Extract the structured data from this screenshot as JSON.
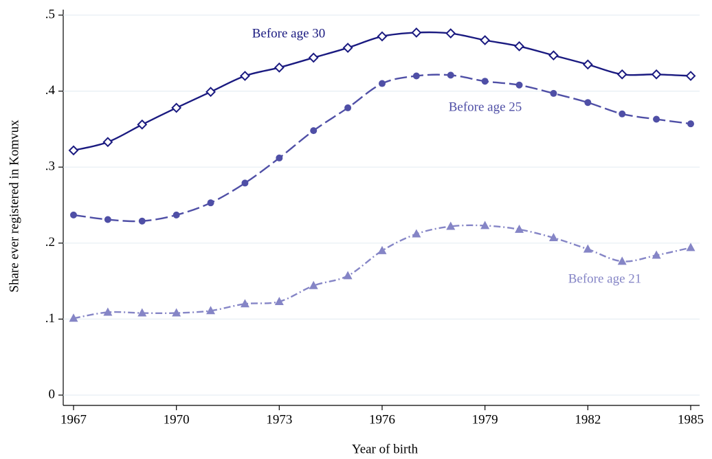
{
  "chart_data": {
    "type": "line",
    "x_label": "Year of birth",
    "y_label": "Share ever registered in Komvux",
    "x": [
      1967,
      1968,
      1969,
      1970,
      1971,
      1972,
      1973,
      1974,
      1975,
      1976,
      1977,
      1978,
      1979,
      1980,
      1981,
      1982,
      1983,
      1984,
      1985
    ],
    "xlim": [
      1967,
      1985
    ],
    "xticks": [
      1967,
      1970,
      1973,
      1976,
      1979,
      1982,
      1985
    ],
    "ylim": [
      0,
      0.5
    ],
    "yticks": [
      0,
      {
        "value": 0.1,
        "label": ".1"
      },
      {
        "value": 0.2,
        "label": ".2"
      },
      {
        "value": 0.3,
        "label": ".3"
      },
      {
        "value": 0.4,
        "label": ".4"
      },
      {
        "value": 0.5,
        "label": ".5"
      }
    ],
    "grid": true,
    "series": [
      {
        "name": "Before age 30",
        "color": "#1a1a80",
        "marker": "diamond",
        "dash": "solid",
        "values": [
          0.322,
          0.333,
          0.356,
          0.378,
          0.399,
          0.42,
          0.431,
          0.444,
          0.457,
          0.472,
          0.477,
          0.476,
          0.467,
          0.459,
          0.447,
          0.435,
          0.422,
          0.422,
          0.42
        ]
      },
      {
        "name": "Before age 25",
        "color": "#4f4fa6",
        "marker": "circle",
        "dash": "dash",
        "values": [
          0.237,
          0.231,
          0.229,
          0.237,
          0.253,
          0.279,
          0.312,
          0.348,
          0.378,
          0.41,
          0.42,
          0.421,
          0.413,
          0.408,
          0.397,
          0.385,
          0.37,
          0.363,
          0.357
        ]
      },
      {
        "name": "Before age 21",
        "color": "#8585c6",
        "marker": "triangle",
        "dash": "dashdot",
        "values": [
          0.101,
          0.109,
          0.108,
          0.108,
          0.111,
          0.12,
          0.123,
          0.144,
          0.157,
          0.19,
          0.212,
          0.222,
          0.223,
          0.218,
          0.207,
          0.192,
          0.176,
          0.184,
          0.194
        ]
      }
    ]
  }
}
